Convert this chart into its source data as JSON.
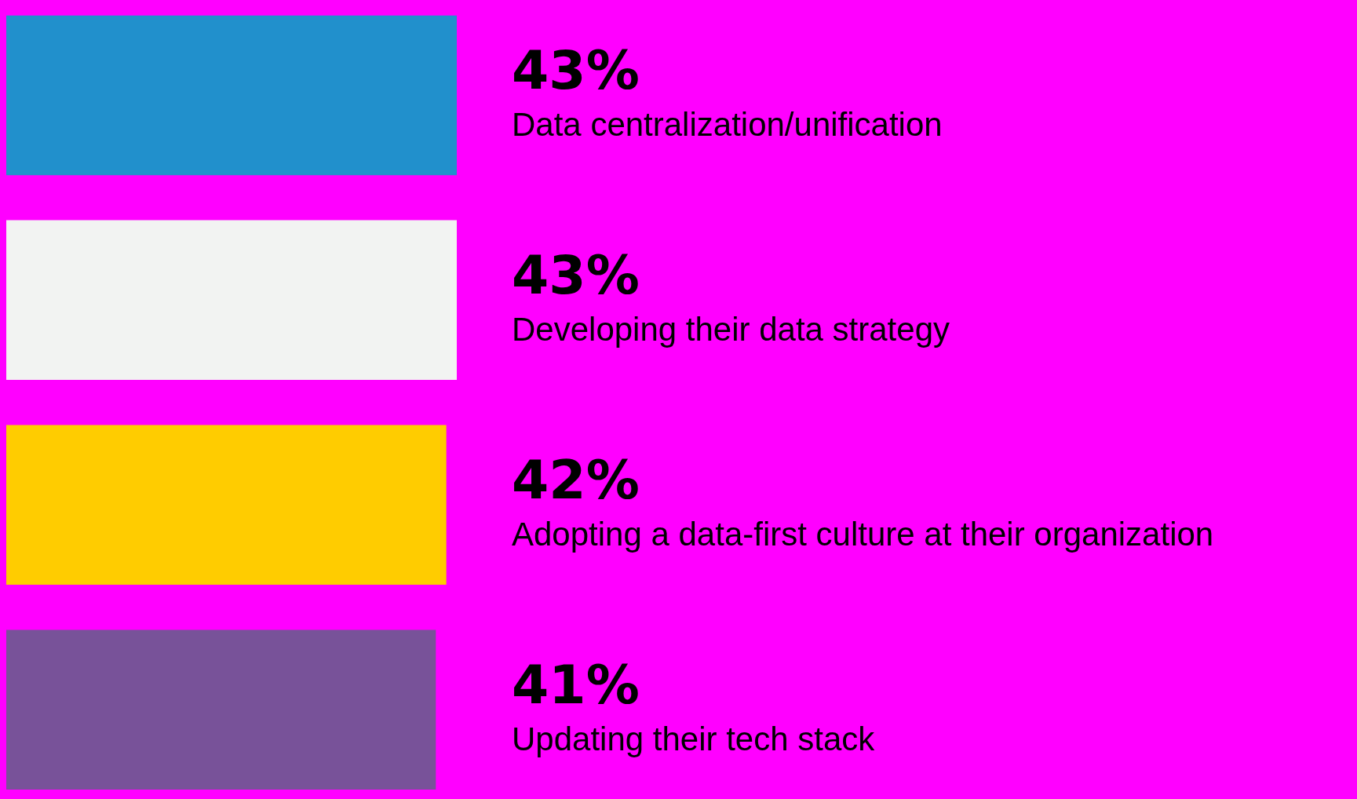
{
  "chart_data": {
    "type": "bar",
    "orientation": "horizontal",
    "categories": [
      "Data centralization/unification",
      "Developing their data strategy",
      "Adopting a data-first culture at their organization",
      "Updating their tech stack"
    ],
    "values": [
      43,
      43,
      42,
      41
    ],
    "colors": [
      "#2190cc",
      "#f2f3f2",
      "#ffcc00",
      "#785299"
    ],
    "value_labels": [
      "43%",
      "43%",
      "42%",
      "41%"
    ],
    "legend": false
  }
}
